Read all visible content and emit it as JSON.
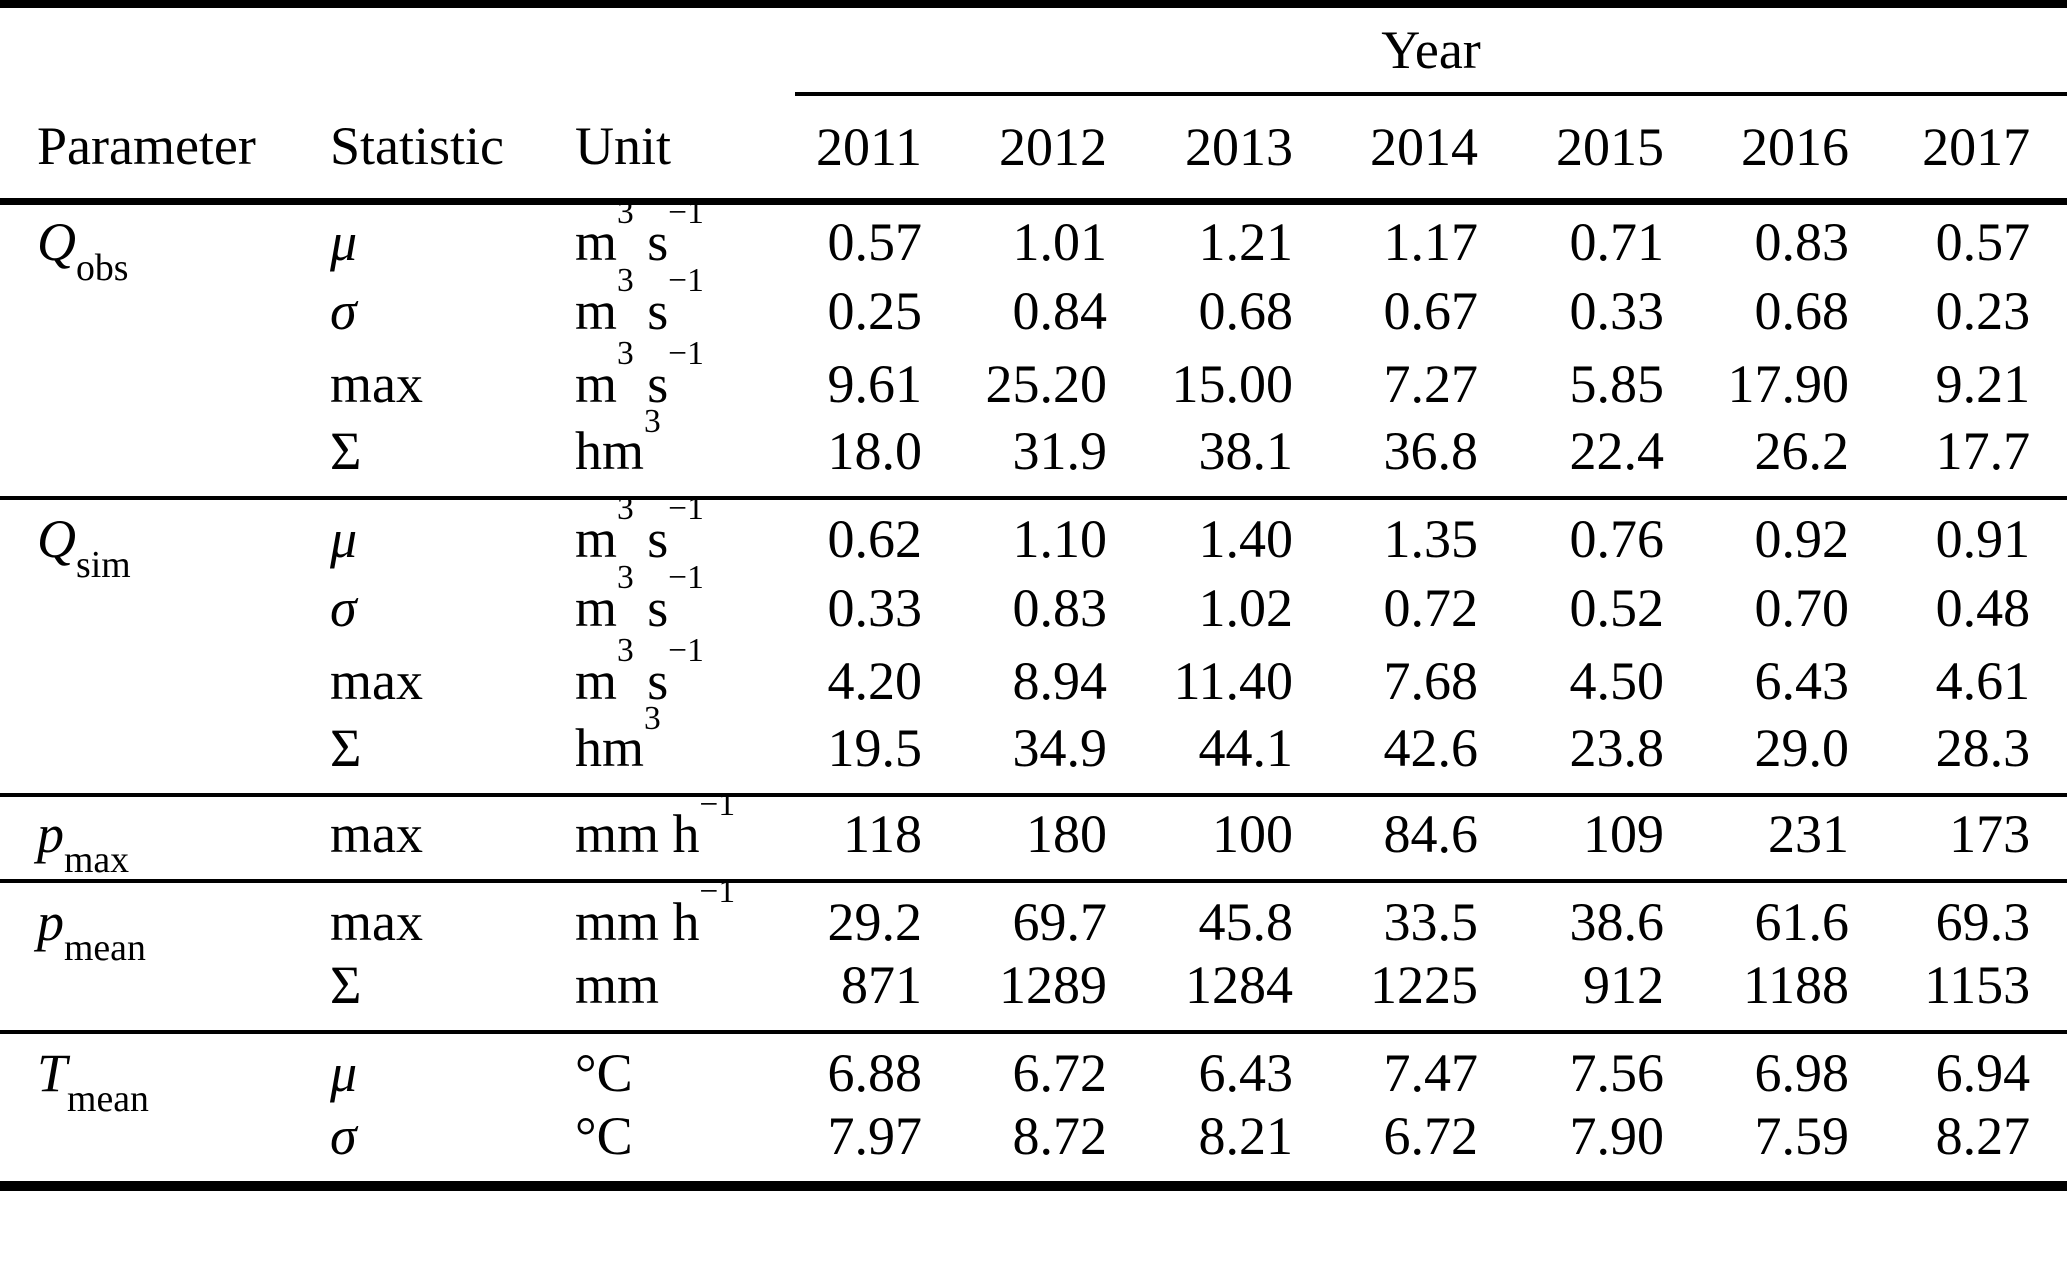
{
  "colors": {
    "text": "#000000",
    "background": "#ffffff"
  },
  "table": {
    "header": {
      "year_group_label": "Year",
      "param_col": "Parameter",
      "stat_col": "Statistic",
      "unit_col": "Unit",
      "years": [
        "2011",
        "2012",
        "2013",
        "2014",
        "2015",
        "2016",
        "2017"
      ]
    },
    "sections": [
      {
        "id": "Q-obs",
        "parameter": {
          "base": "Q",
          "sub": "obs"
        },
        "rows": [
          {
            "stat": "μ",
            "it": true,
            "unit": [
              [
                "m"
              ],
              [
                "3",
                "sup"
              ],
              [
                " s"
              ],
              [
                "−1",
                "sup"
              ]
            ],
            "values": [
              "0.57",
              "1.01",
              "1.21",
              "1.17",
              "0.71",
              "0.83",
              "0.57"
            ]
          },
          {
            "stat": "σ",
            "it": true,
            "unit": [
              [
                "m"
              ],
              [
                "3",
                "sup"
              ],
              [
                " s"
              ],
              [
                "−1",
                "sup"
              ]
            ],
            "values": [
              "0.25",
              "0.84",
              "0.68",
              "0.67",
              "0.33",
              "0.68",
              "0.23"
            ]
          },
          {
            "stat": "max",
            "it": false,
            "unit": [
              [
                "m"
              ],
              [
                "3",
                "sup"
              ],
              [
                " s"
              ],
              [
                "−1",
                "sup"
              ]
            ],
            "values": [
              "9.61",
              "25.20",
              "15.00",
              "7.27",
              "5.85",
              "17.90",
              "9.21"
            ]
          },
          {
            "stat": "Σ",
            "it": false,
            "unit": [
              [
                "hm"
              ],
              [
                "3",
                "sup"
              ]
            ],
            "values": [
              "18.0",
              "31.9",
              "38.1",
              "36.8",
              "22.4",
              "26.2",
              "17.7"
            ]
          }
        ]
      },
      {
        "id": "Q-sim",
        "parameter": {
          "base": "Q",
          "sub": "sim"
        },
        "rows": [
          {
            "stat": "μ",
            "it": true,
            "unit": [
              [
                "m"
              ],
              [
                "3",
                "sup"
              ],
              [
                " s"
              ],
              [
                "−1",
                "sup"
              ]
            ],
            "values": [
              "0.62",
              "1.10",
              "1.40",
              "1.35",
              "0.76",
              "0.92",
              "0.91"
            ]
          },
          {
            "stat": "σ",
            "it": true,
            "unit": [
              [
                "m"
              ],
              [
                "3",
                "sup"
              ],
              [
                " s"
              ],
              [
                "−1",
                "sup"
              ]
            ],
            "values": [
              "0.33",
              "0.83",
              "1.02",
              "0.72",
              "0.52",
              "0.70",
              "0.48"
            ]
          },
          {
            "stat": "max",
            "it": false,
            "unit": [
              [
                "m"
              ],
              [
                "3",
                "sup"
              ],
              [
                " s"
              ],
              [
                "−1",
                "sup"
              ]
            ],
            "values": [
              "4.20",
              "8.94",
              "11.40",
              "7.68",
              "4.50",
              "6.43",
              "4.61"
            ]
          },
          {
            "stat": "Σ",
            "it": false,
            "unit": [
              [
                "hm"
              ],
              [
                "3",
                "sup"
              ]
            ],
            "values": [
              "19.5",
              "34.9",
              "44.1",
              "42.6",
              "23.8",
              "29.0",
              "28.3"
            ]
          }
        ]
      },
      {
        "id": "p-max",
        "parameter": {
          "base": "p",
          "sub": "max"
        },
        "rows": [
          {
            "stat": "max",
            "it": false,
            "unit": [
              [
                "mm h"
              ],
              [
                "−1",
                "sup"
              ]
            ],
            "values": [
              "118",
              "180",
              "100",
              "84.6",
              "109",
              "231",
              "173"
            ]
          }
        ]
      },
      {
        "id": "p-mean",
        "parameter": {
          "base": "p",
          "sub": "mean"
        },
        "rows": [
          {
            "stat": "max",
            "it": false,
            "unit": [
              [
                "mm h"
              ],
              [
                "−1",
                "sup"
              ]
            ],
            "values": [
              "29.2",
              "69.7",
              "45.8",
              "33.5",
              "38.6",
              "61.6",
              "69.3"
            ]
          },
          {
            "stat": "Σ",
            "it": false,
            "unit": [
              [
                "mm"
              ]
            ],
            "values": [
              "871",
              "1289",
              "1284",
              "1225",
              "912",
              "1188",
              "1153"
            ]
          }
        ]
      },
      {
        "id": "T-mean",
        "parameter": {
          "base": "T",
          "sub": "mean"
        },
        "rows": [
          {
            "stat": "μ",
            "it": true,
            "unit": [
              [
                "°C"
              ]
            ],
            "values": [
              "6.88",
              "6.72",
              "6.43",
              "7.47",
              "7.56",
              "6.98",
              "6.94"
            ]
          },
          {
            "stat": "σ",
            "it": true,
            "unit": [
              [
                "°C"
              ]
            ],
            "values": [
              "7.97",
              "8.72",
              "8.21",
              "6.72",
              "7.90",
              "7.59",
              "8.27"
            ]
          }
        ]
      }
    ]
  }
}
